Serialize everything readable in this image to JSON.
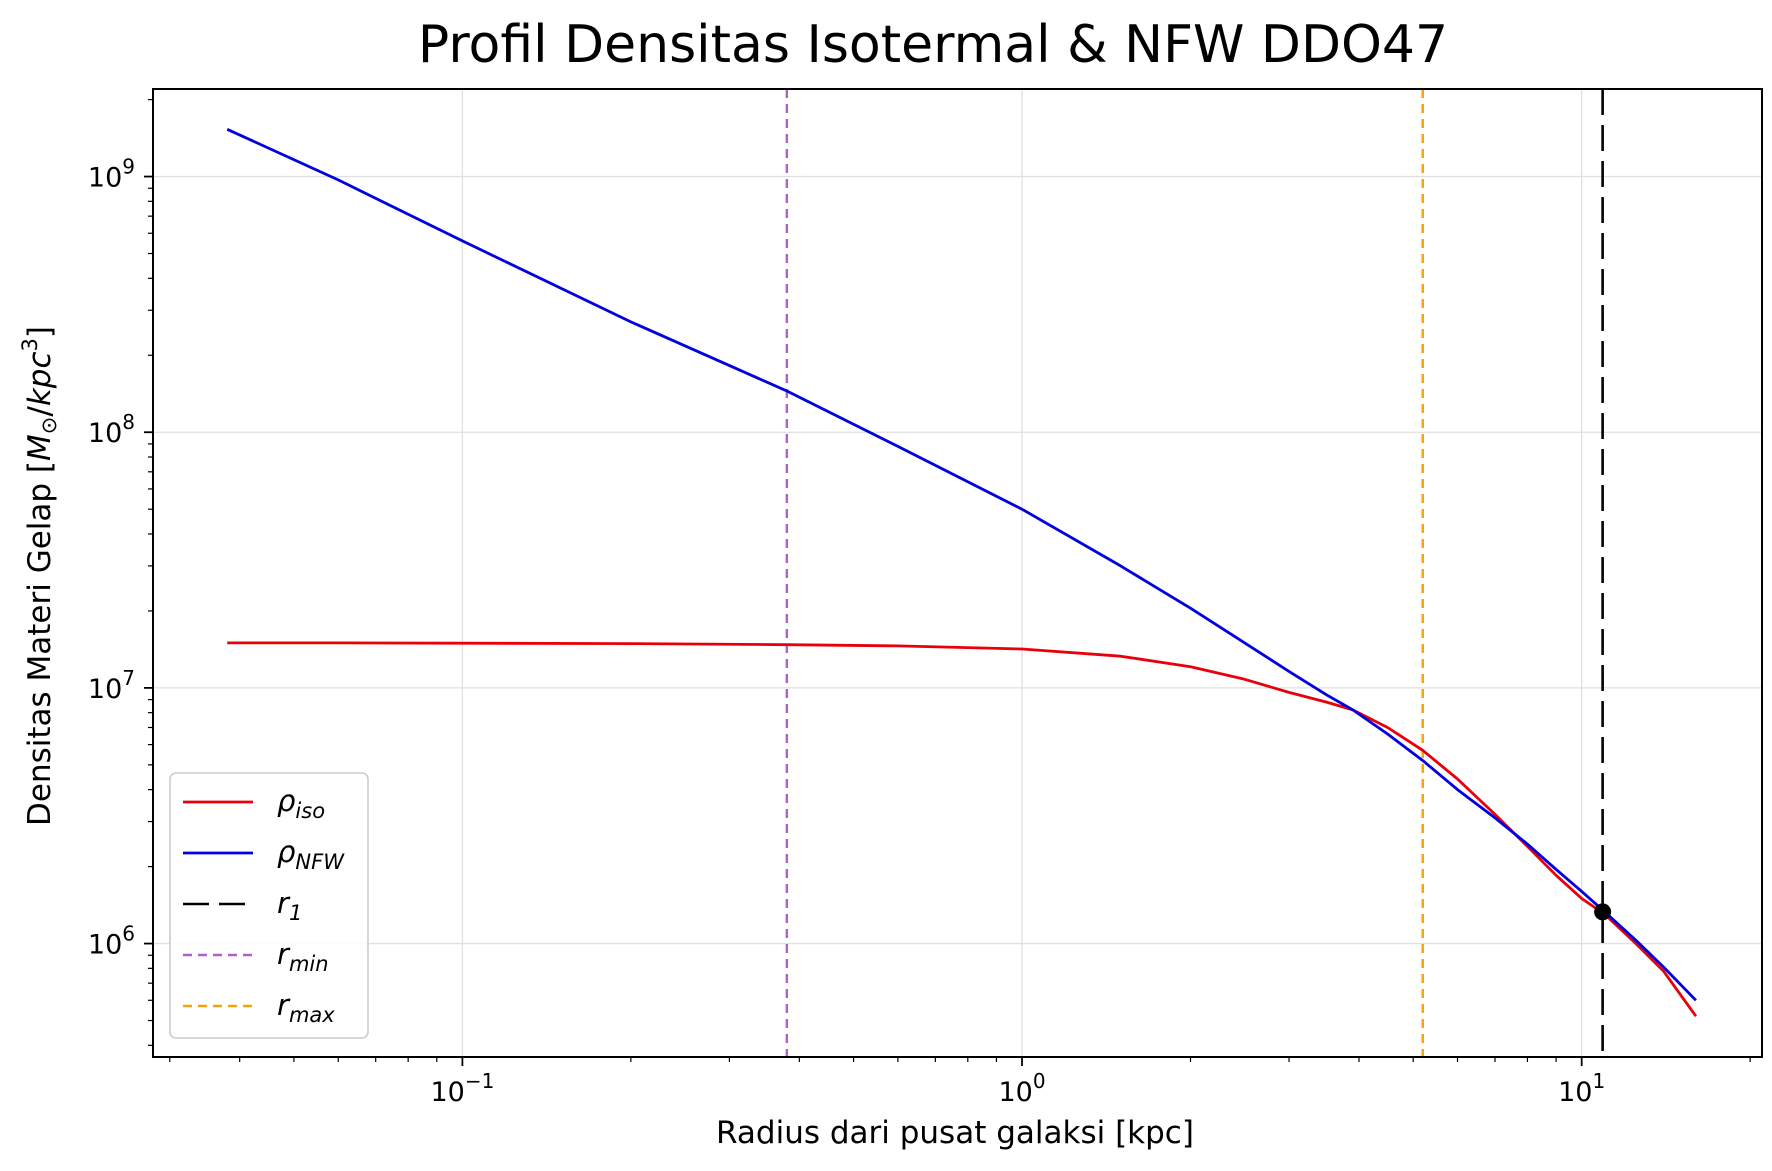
{
  "chart_data": {
    "type": "line",
    "title": "Profil Densitas Isotermal & NFW DDO47",
    "xlabel": "Radius dari pusat galaksi [kpc]",
    "ylabel_parts": [
      "Densitas Materi Gelap [",
      "M",
      "⊙",
      "/",
      "kpc",
      "3",
      "]"
    ],
    "xscale": "log",
    "yscale": "log",
    "xlim": [
      0.028,
      21
    ],
    "ylim": [
      360000,
      2200000000
    ],
    "grid": true,
    "legend_position": "lower-left",
    "x_ticks": [
      {
        "value": 0.1,
        "base": "10",
        "exp": "−1"
      },
      {
        "value": 1,
        "base": "10",
        "exp": "0"
      },
      {
        "value": 10,
        "base": "10",
        "exp": "1"
      }
    ],
    "y_ticks": [
      {
        "value": 1000000,
        "base": "10",
        "exp": "6"
      },
      {
        "value": 10000000,
        "base": "10",
        "exp": "7"
      },
      {
        "value": 100000000,
        "base": "10",
        "exp": "8"
      },
      {
        "value": 1000000000,
        "base": "10",
        "exp": "9"
      }
    ],
    "series": [
      {
        "key": "rho_iso",
        "legend_symbol": "ρ",
        "legend_sub": "iso",
        "color": "#e8000b",
        "x": [
          0.038,
          0.06,
          0.1,
          0.2,
          0.38,
          0.6,
          1.0,
          1.5,
          2.0,
          2.5,
          3.0,
          3.5,
          3.9,
          4.5,
          5.2,
          6.0,
          7.0,
          8.0,
          9.0,
          10.0,
          11.0,
          12.5,
          14.0,
          16.0
        ],
        "y": [
          15000000,
          15000000,
          14950000,
          14900000,
          14750000,
          14600000,
          14200000,
          13300000,
          12100000,
          10800000,
          9600000,
          8800000,
          8200000,
          7000000,
          5700000,
          4400000,
          3200000,
          2400000,
          1850000,
          1500000,
          1300000,
          1000000,
          780000,
          520000
        ]
      },
      {
        "key": "rho_nfw",
        "legend_symbol": "ρ",
        "legend_sub": "NFW",
        "color": "#0000e0",
        "x": [
          0.038,
          0.06,
          0.1,
          0.2,
          0.38,
          0.6,
          1.0,
          1.5,
          2.0,
          2.5,
          3.0,
          3.5,
          3.9,
          4.5,
          5.2,
          6.0,
          7.0,
          8.0,
          9.0,
          10.0,
          11.0,
          12.5,
          14.0,
          16.0
        ],
        "y": [
          1530000000,
          970000000,
          560000000,
          270000000,
          145000000,
          88000000,
          50000000,
          30000000,
          20500000,
          15000000,
          11600000,
          9400000,
          8200000,
          6600000,
          5200000,
          4000000,
          3100000,
          2450000,
          1950000,
          1600000,
          1330000,
          1030000,
          810000,
          600000
        ]
      }
    ],
    "vlines": [
      {
        "key": "r_1",
        "legend_symbol": "r",
        "legend_sub": "1",
        "x": 10.9,
        "color": "#000000",
        "dash": "26 10",
        "width": 2.6
      },
      {
        "key": "r_min",
        "legend_symbol": "r",
        "legend_sub": "min",
        "x": 0.38,
        "color": "#b05fcf",
        "dash": "9 6",
        "width": 2.4
      },
      {
        "key": "r_max",
        "legend_symbol": "r",
        "legend_sub": "max",
        "x": 5.2,
        "color": "#f5a10d",
        "dash": "9 6",
        "width": 2.4
      }
    ],
    "point": {
      "x": 10.9,
      "y": 1330000,
      "color": "#000000"
    }
  }
}
